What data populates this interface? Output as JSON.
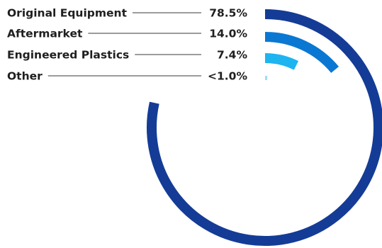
{
  "chart_data": {
    "type": "radial-bar",
    "categories": [
      "Original Equipment",
      "Aftermarket",
      "Engineered Plastics",
      "Other"
    ],
    "values": [
      78.5,
      14.0,
      7.4,
      0.7
    ],
    "value_labels": [
      "78.5%",
      "14.0%",
      "7.4%",
      "<1.0%"
    ],
    "unit": "%",
    "max": 100,
    "colors": [
      "#143c96",
      "#0a78d2",
      "#1eb4f0",
      "#a0dcf5"
    ],
    "legend_placement": "left"
  }
}
